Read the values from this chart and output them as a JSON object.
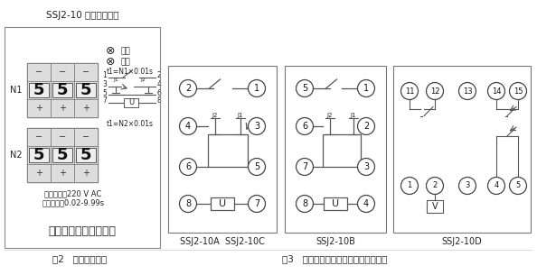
{
  "title_panel": "SSJ2-10 型时间继电器",
  "n1_label": "N1",
  "n2_label": "N2",
  "specs_line1": "额定电压：220 V AC",
  "specs_line2": "延时范围：0.02-9.99s",
  "company": "上海上继科技有限公司",
  "fig2_label": "图2   继电器面板图",
  "fig3_label": "图3   继电器内部及端子接线图（背视）",
  "power_label": "电源",
  "action_label": "动作",
  "t1_n1": "t1=N1×0.01s",
  "t1_n2": "t1=N2×0.01s",
  "diagram_label_A": "SSJ2-10A  SSJ2-10C",
  "diagram_label_B": "SSJ2-10B",
  "diagram_label_D": "SSJ2-10D",
  "bg_color": "#ffffff",
  "line_color": "#555555",
  "text_color": "#222222",
  "panel_border": "#aaaaaa"
}
